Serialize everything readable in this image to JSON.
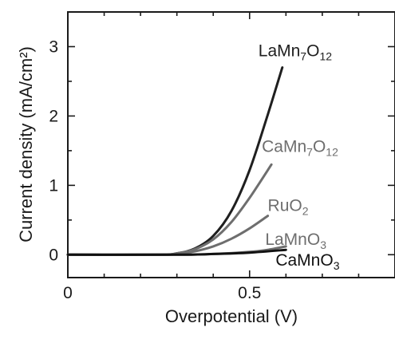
{
  "chart_data": {
    "type": "line",
    "xlabel": "Overpotential (V)",
    "ylabel": "Current density (mA/cm²)",
    "xlim": [
      0,
      0.9
    ],
    "ylim": [
      -0.33,
      3.5
    ],
    "x_ticks": [
      0,
      0.5
    ],
    "x_tick_labels": [
      "0",
      "0.5"
    ],
    "y_ticks": [
      0,
      1,
      2,
      3
    ],
    "y_tick_labels": [
      "0",
      "1",
      "2",
      "3"
    ],
    "grid": false,
    "series": [
      {
        "name": "LaMn7O12",
        "label_parts": [
          [
            "LaMn",
            ""
          ],
          [
            "7",
            "sub"
          ],
          [
            "O",
            ""
          ],
          [
            "12",
            "sub"
          ]
        ],
        "color": "#1f1f1f",
        "x": [
          0.0,
          0.25,
          0.3,
          0.35,
          0.4,
          0.45,
          0.5,
          0.55,
          0.59
        ],
        "y": [
          0.0,
          0.0,
          0.02,
          0.09,
          0.27,
          0.63,
          1.22,
          2.02,
          2.7
        ]
      },
      {
        "name": "CaMn7O12",
        "label_parts": [
          [
            "CaMn",
            ""
          ],
          [
            "7",
            "sub"
          ],
          [
            "O",
            ""
          ],
          [
            "12",
            "sub"
          ]
        ],
        "color": "#6e6e6e",
        "x": [
          0.0,
          0.25,
          0.3,
          0.35,
          0.4,
          0.45,
          0.5,
          0.56
        ],
        "y": [
          0.0,
          0.0,
          0.02,
          0.08,
          0.22,
          0.47,
          0.82,
          1.3
        ]
      },
      {
        "name": "RuO2",
        "label_parts": [
          [
            "RuO",
            ""
          ],
          [
            "2",
            "sub"
          ]
        ],
        "color": "#6e6e6e",
        "x": [
          0.0,
          0.25,
          0.3,
          0.35,
          0.4,
          0.45,
          0.5,
          0.55
        ],
        "y": [
          0.0,
          0.0,
          0.01,
          0.05,
          0.12,
          0.23,
          0.38,
          0.56
        ]
      },
      {
        "name": "LaMnO3",
        "label_parts": [
          [
            "LaMnO",
            ""
          ],
          [
            "3",
            "sub"
          ]
        ],
        "color": "#6e6e6e",
        "x": [
          0.0,
          0.3,
          0.4,
          0.5,
          0.55,
          0.6
        ],
        "y": [
          0.0,
          0.0,
          0.01,
          0.04,
          0.07,
          0.12
        ]
      },
      {
        "name": "CaMnO3",
        "label_parts": [
          [
            "CaMnO",
            ""
          ],
          [
            "3",
            "sub"
          ]
        ],
        "color": "#111111",
        "x": [
          0.0,
          0.3,
          0.4,
          0.5,
          0.6
        ],
        "y": [
          0.0,
          0.0,
          0.01,
          0.03,
          0.07
        ]
      }
    ]
  },
  "colors": {
    "axis": "#1a1a1a",
    "background": "#ffffff"
  }
}
